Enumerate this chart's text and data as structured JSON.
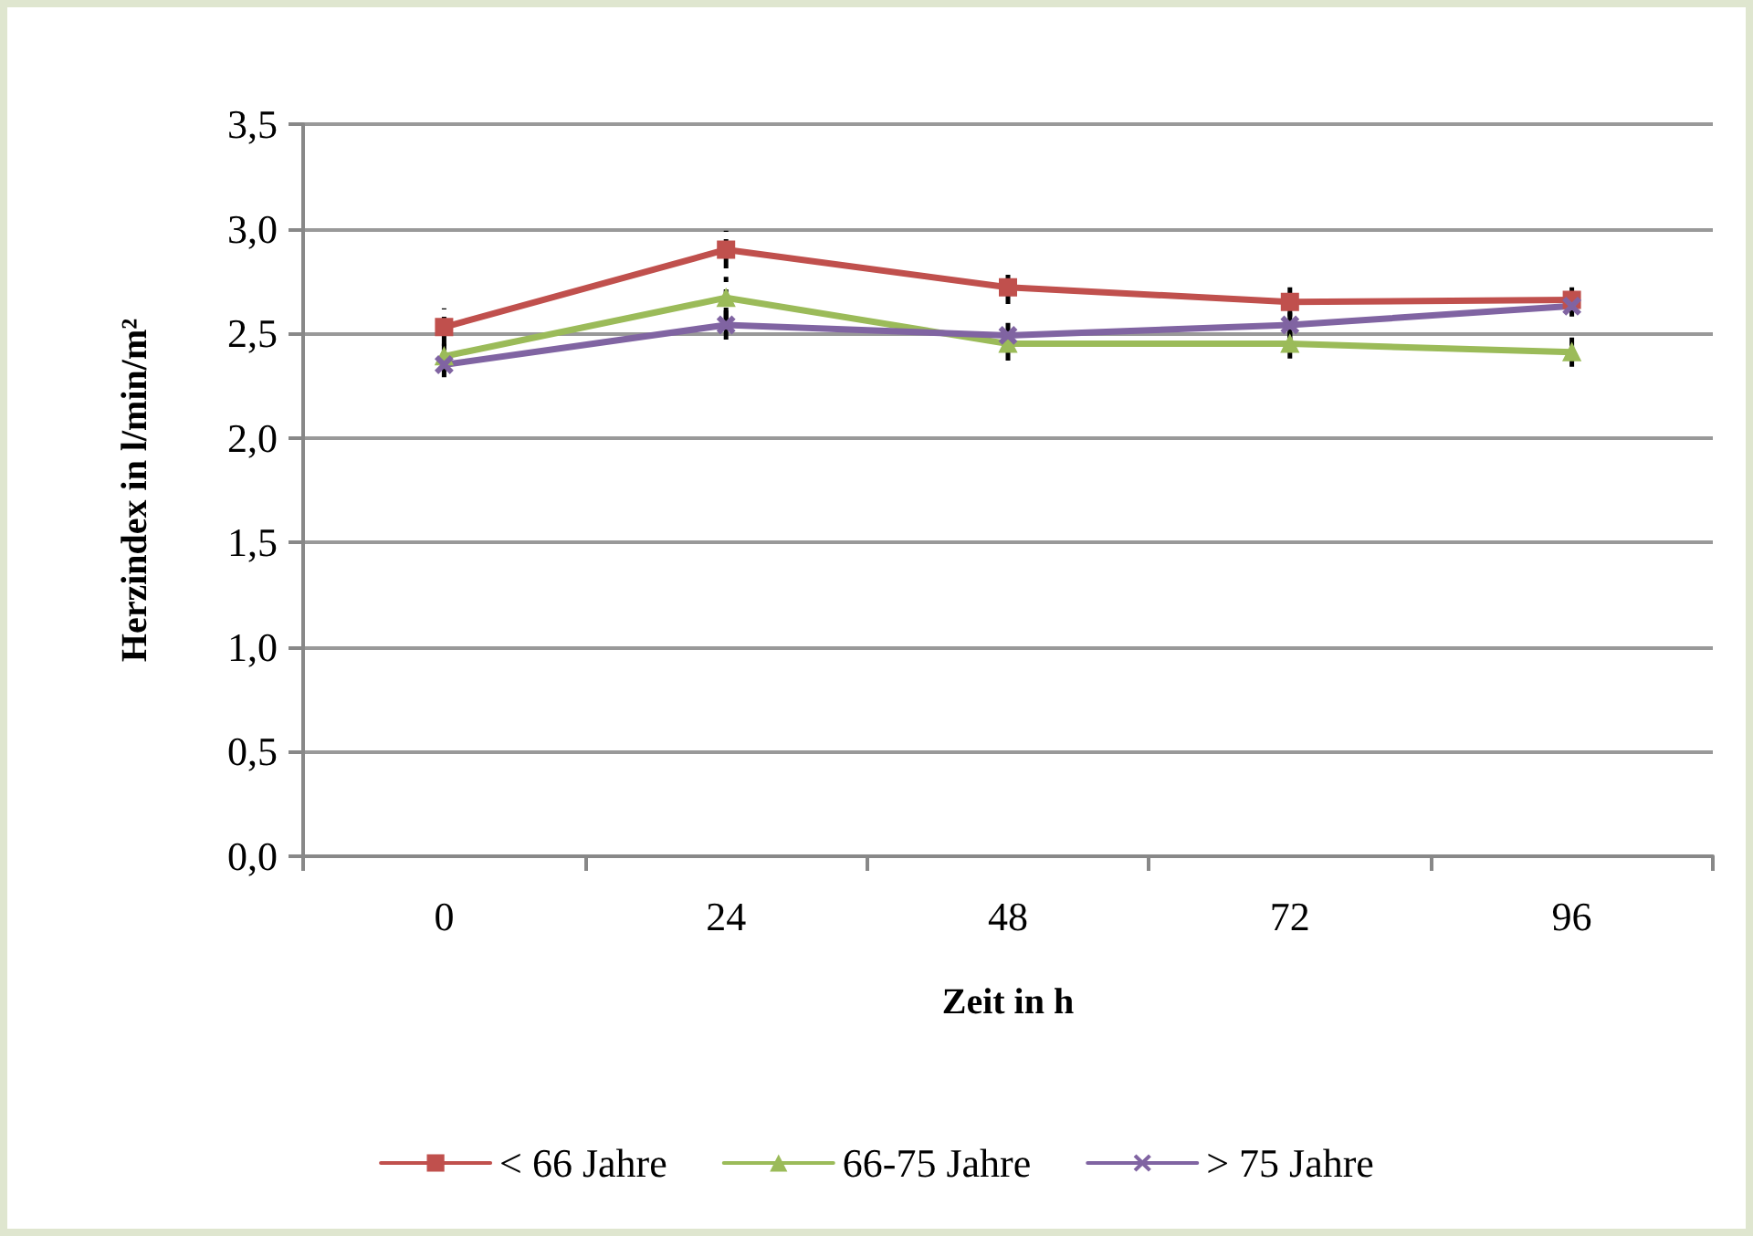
{
  "chart_data": {
    "type": "line",
    "xlabel": "Zeit in h",
    "ylabel": "Herzindex in l/min/m²",
    "categories": [
      "0",
      "24",
      "48",
      "72",
      "96"
    ],
    "series": [
      {
        "name": "< 66 Jahre",
        "color": "#c0504d",
        "marker": "square",
        "values": [
          2.53,
          2.9,
          2.72,
          2.65,
          2.66
        ],
        "errors": [
          0.09,
          0.09,
          0.08,
          0.07,
          0.06
        ]
      },
      {
        "name": "66-75 Jahre",
        "color": "#9bbb59",
        "marker": "triangle",
        "values": [
          2.39,
          2.67,
          2.45,
          2.45,
          2.41
        ],
        "errors": [
          0.06,
          0.1,
          0.08,
          0.07,
          0.07
        ]
      },
      {
        "name": "> 75 Jahre",
        "color": "#8064a2",
        "marker": "cross",
        "values": [
          2.35,
          2.54,
          2.49,
          2.54,
          2.63
        ],
        "errors": [
          0.06,
          0.07,
          0.08,
          0.08,
          0.05
        ]
      }
    ],
    "ylim": [
      0,
      3.5
    ],
    "yticks": [
      {
        "value": 0,
        "label": "0,0"
      },
      {
        "value": 0.5,
        "label": "0,5"
      },
      {
        "value": 1,
        "label": "1,0"
      },
      {
        "value": 1.5,
        "label": "1,5"
      },
      {
        "value": 2,
        "label": "2,0"
      },
      {
        "value": 2.5,
        "label": "2,5"
      },
      {
        "value": 3,
        "label": "3,0"
      },
      {
        "value": 3.5,
        "label": "3,5"
      }
    ],
    "grid": "y",
    "legend": "bottom",
    "line_style": "solid"
  }
}
